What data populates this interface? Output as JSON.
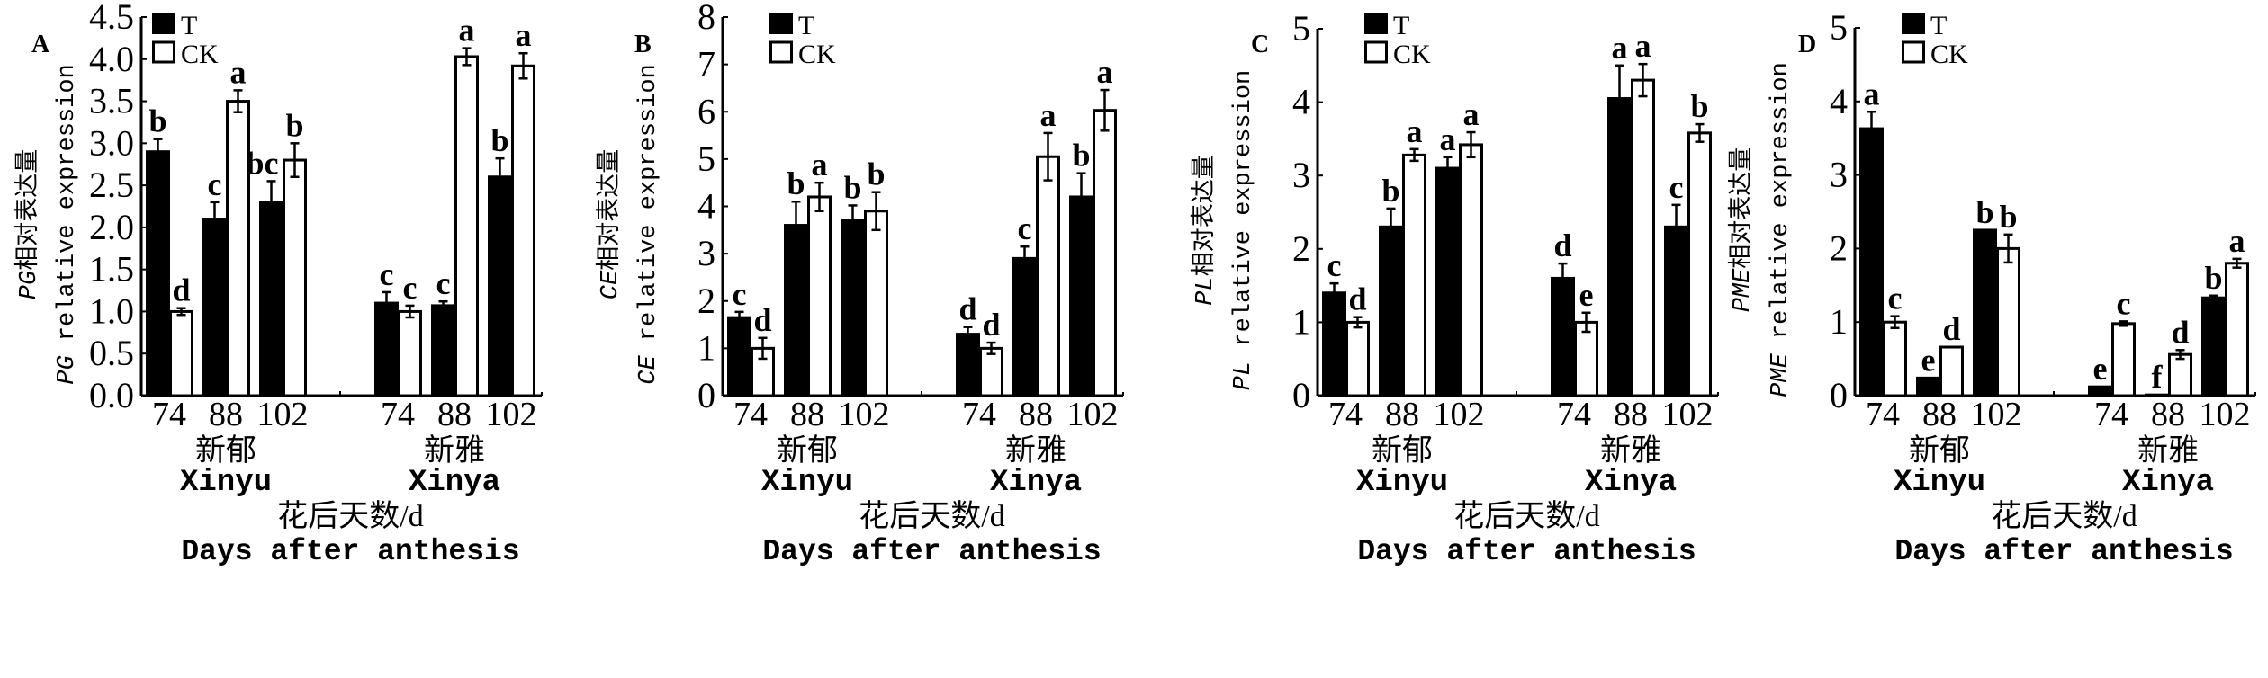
{
  "legend": {
    "t": "T",
    "ck": "CK"
  },
  "xaxis": {
    "title_cn": "花后天数/d",
    "title_en": "Days after anthesis"
  },
  "chart_data": [
    {
      "type": "bar",
      "panel": "A",
      "ylabel_gene": "PG",
      "ylabel_cn": "相对表达量",
      "ylabel_en": "relative expression",
      "ylim": [
        0,
        4.5
      ],
      "yticks": [
        "0.0",
        "0.5",
        "1.0",
        "1.5",
        "2.0",
        "2.5",
        "3.0",
        "3.5",
        "4.0",
        "4.5"
      ],
      "ystep": 0.5,
      "groups": [
        {
          "name_cn": "新郁",
          "name_en": "Xinyu",
          "days": [
            "74",
            "88",
            "102"
          ],
          "T": [
            2.9,
            2.1,
            2.3
          ],
          "T_err": [
            0.15,
            0.2,
            0.25
          ],
          "T_sig": [
            "b",
            "c",
            "bc"
          ],
          "CK": [
            1.0,
            3.5,
            2.8
          ],
          "CK_err": [
            0.04,
            0.13,
            0.2
          ],
          "CK_sig": [
            "d",
            "a",
            "b"
          ]
        },
        {
          "name_cn": "新雅",
          "name_en": "Xinya",
          "days": [
            "74",
            "88",
            "102"
          ],
          "T": [
            1.1,
            1.07,
            2.6
          ],
          "T_err": [
            0.13,
            0.05,
            0.22
          ],
          "T_sig": [
            "c",
            "c",
            "b"
          ],
          "CK": [
            1.0,
            4.03,
            3.92
          ],
          "CK_err": [
            0.07,
            0.1,
            0.15
          ],
          "CK_sig": [
            "c",
            "a",
            "a"
          ]
        }
      ]
    },
    {
      "type": "bar",
      "panel": "B",
      "ylabel_gene": "CE",
      "ylabel_cn": "相对表达量",
      "ylabel_en": "relative expression",
      "ylim": [
        0,
        8
      ],
      "yticks": [
        "0",
        "1",
        "2",
        "3",
        "4",
        "5",
        "6",
        "7",
        "8"
      ],
      "ystep": 1,
      "groups": [
        {
          "name_cn": "新郁",
          "name_en": "Xinyu",
          "days": [
            "74",
            "88",
            "102"
          ],
          "T": [
            1.65,
            3.6,
            3.7
          ],
          "T_err": [
            0.12,
            0.5,
            0.32
          ],
          "T_sig": [
            "c",
            "b",
            "b"
          ],
          "CK": [
            1.0,
            4.2,
            3.9
          ],
          "CK_err": [
            0.22,
            0.3,
            0.4
          ],
          "CK_sig": [
            "d",
            "a",
            "b"
          ]
        },
        {
          "name_cn": "新雅",
          "name_en": "Xinya",
          "days": [
            "74",
            "88",
            "102"
          ],
          "T": [
            1.3,
            2.9,
            4.2
          ],
          "T_err": [
            0.15,
            0.25,
            0.5
          ],
          "T_sig": [
            "d",
            "c",
            "b"
          ],
          "CK": [
            1.0,
            5.05,
            6.03
          ],
          "CK_err": [
            0.12,
            0.5,
            0.43
          ],
          "CK_sig": [
            "d",
            "a",
            "a"
          ]
        }
      ]
    },
    {
      "type": "bar",
      "panel": "C",
      "ylabel_gene": "PL",
      "ylabel_cn": "相对表达量",
      "ylabel_en": "relative expression",
      "ylim": [
        0,
        5
      ],
      "yticks": [
        "0",
        "1",
        "2",
        "3",
        "4",
        "5"
      ],
      "ystep": 1,
      "groups": [
        {
          "name_cn": "新郁",
          "name_en": "Xinyu",
          "days": [
            "74",
            "88",
            "102"
          ],
          "T": [
            1.4,
            2.3,
            3.1
          ],
          "T_err": [
            0.13,
            0.25,
            0.15
          ],
          "T_sig": [
            "c",
            "b",
            "a"
          ],
          "CK": [
            1.0,
            3.28,
            3.42
          ],
          "CK_err": [
            0.07,
            0.08,
            0.17
          ],
          "CK_sig": [
            "d",
            "a",
            "a"
          ]
        },
        {
          "name_cn": "新雅",
          "name_en": "Xinya",
          "days": [
            "74",
            "88",
            "102"
          ],
          "T": [
            1.6,
            4.05,
            2.3
          ],
          "T_err": [
            0.2,
            0.45,
            0.3
          ],
          "T_sig": [
            "d",
            "a",
            "c"
          ],
          "CK": [
            1.0,
            4.3,
            3.58
          ],
          "CK_err": [
            0.13,
            0.22,
            0.12
          ],
          "CK_sig": [
            "e",
            "a",
            "b"
          ]
        }
      ]
    },
    {
      "type": "bar",
      "panel": "D",
      "ylabel_gene": "PME",
      "ylabel_cn": "相对表达量",
      "ylabel_en": "relative expression",
      "ylim": [
        0,
        5
      ],
      "yticks": [
        "0",
        "1",
        "2",
        "3",
        "4",
        "5"
      ],
      "ystep": 1,
      "groups": [
        {
          "name_cn": "新郁",
          "name_en": "Xinyu",
          "days": [
            "74",
            "88",
            "102"
          ],
          "T": [
            3.63,
            0.24,
            2.25
          ],
          "T_err": [
            0.23,
            0,
            0
          ],
          "T_sig": [
            "a",
            "e",
            "b"
          ],
          "CK": [
            1.0,
            0.66,
            2.0
          ],
          "CK_err": [
            0.08,
            0,
            0.19
          ],
          "CK_sig": [
            "c",
            "d",
            "b"
          ]
        },
        {
          "name_cn": "新雅",
          "name_en": "Xinya",
          "days": [
            "74",
            "88",
            "102"
          ],
          "T": [
            0.12,
            0.01,
            1.33
          ],
          "T_err": [
            0,
            0,
            0.03
          ],
          "T_sig": [
            "e",
            "f",
            "b"
          ],
          "CK": [
            0.98,
            0.56,
            1.8
          ],
          "CK_err": [
            0.03,
            0.06,
            0.06
          ],
          "CK_sig": [
            "c",
            "d",
            "a"
          ]
        }
      ]
    }
  ]
}
